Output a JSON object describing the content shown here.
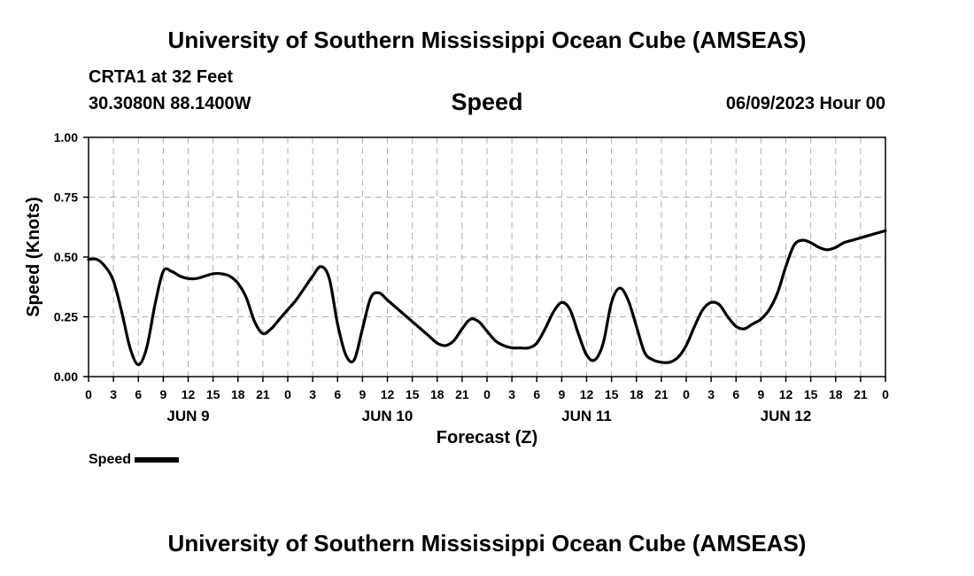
{
  "header": {
    "title": "University of Southern Mississippi Ocean Cube (AMSEAS)",
    "station": "CRTA1 at 32 Feet",
    "coords": "30.3080N  88.1400W",
    "plot_heading": "Speed",
    "datetime": "06/09/2023 Hour 00"
  },
  "footer": {
    "title": "University of Southern Mississippi Ocean Cube (AMSEAS)"
  },
  "legend": {
    "label": "Speed"
  },
  "colors": {
    "line": "#000000",
    "grid": "#b0b0b0",
    "background": "#ffffff"
  },
  "chart_data": {
    "type": "line",
    "title": "Speed",
    "xlabel": "Forecast (Z)",
    "ylabel": "Speed (Knots)",
    "ylim": [
      0,
      1
    ],
    "yticks": [
      0,
      0.25,
      0.5,
      0.75,
      1.0
    ],
    "ytick_labels": [
      "0.00",
      "0.25",
      "0.50",
      "0.75",
      "1.00"
    ],
    "xlim": [
      0,
      96
    ],
    "xtick_hours": [
      0,
      3,
      6,
      9,
      12,
      15,
      18,
      21,
      24,
      27,
      30,
      33,
      36,
      39,
      42,
      45,
      48,
      51,
      54,
      57,
      60,
      63,
      66,
      69,
      72,
      75,
      78,
      81,
      84,
      87,
      90,
      93,
      96
    ],
    "xtick_labels": [
      "0",
      "3",
      "6",
      "9",
      "12",
      "15",
      "18",
      "21",
      "0",
      "3",
      "6",
      "9",
      "12",
      "15",
      "18",
      "21",
      "0",
      "3",
      "6",
      "9",
      "12",
      "15",
      "18",
      "21",
      "0",
      "3",
      "6",
      "9",
      "12",
      "15",
      "18",
      "21",
      "0"
    ],
    "day_labels": [
      {
        "label": "JUN 9",
        "hour": 12
      },
      {
        "label": "JUN 10",
        "hour": 36
      },
      {
        "label": "JUN 11",
        "hour": 60
      },
      {
        "label": "JUN 12",
        "hour": 84
      }
    ],
    "grid": true,
    "series": [
      {
        "name": "Speed",
        "x": [
          0,
          1,
          2,
          3,
          4,
          5,
          6,
          7,
          8,
          9,
          10,
          11,
          12,
          13,
          14,
          15,
          16,
          17,
          18,
          19,
          20,
          21,
          22,
          23,
          24,
          25,
          26,
          27,
          28,
          29,
          30,
          31,
          32,
          33,
          34,
          35,
          36,
          37,
          38,
          39,
          40,
          41,
          42,
          43,
          44,
          45,
          46,
          47,
          48,
          49,
          50,
          51,
          52,
          53,
          54,
          55,
          56,
          57,
          58,
          59,
          60,
          61,
          62,
          63,
          64,
          65,
          66,
          67,
          68,
          69,
          70,
          71,
          72,
          73,
          74,
          75,
          76,
          77,
          78,
          79,
          80,
          81,
          82,
          83,
          84,
          85,
          86,
          87,
          88,
          89,
          90,
          91,
          92,
          93,
          94,
          95,
          96
        ],
        "values": [
          0.49,
          0.49,
          0.46,
          0.4,
          0.27,
          0.12,
          0.05,
          0.12,
          0.3,
          0.44,
          0.44,
          0.42,
          0.41,
          0.41,
          0.42,
          0.43,
          0.43,
          0.42,
          0.39,
          0.33,
          0.23,
          0.18,
          0.2,
          0.24,
          0.28,
          0.32,
          0.37,
          0.42,
          0.46,
          0.41,
          0.22,
          0.09,
          0.07,
          0.2,
          0.33,
          0.35,
          0.32,
          0.29,
          0.26,
          0.23,
          0.2,
          0.17,
          0.14,
          0.13,
          0.15,
          0.2,
          0.24,
          0.23,
          0.19,
          0.15,
          0.13,
          0.12,
          0.12,
          0.12,
          0.14,
          0.2,
          0.27,
          0.31,
          0.28,
          0.18,
          0.09,
          0.07,
          0.14,
          0.31,
          0.37,
          0.32,
          0.21,
          0.1,
          0.07,
          0.06,
          0.06,
          0.08,
          0.13,
          0.21,
          0.28,
          0.31,
          0.3,
          0.25,
          0.21,
          0.2,
          0.22,
          0.24,
          0.28,
          0.35,
          0.46,
          0.55,
          0.57,
          0.56,
          0.54,
          0.53,
          0.54,
          0.56,
          0.57,
          0.58,
          0.59,
          0.6,
          0.61
        ]
      }
    ]
  }
}
